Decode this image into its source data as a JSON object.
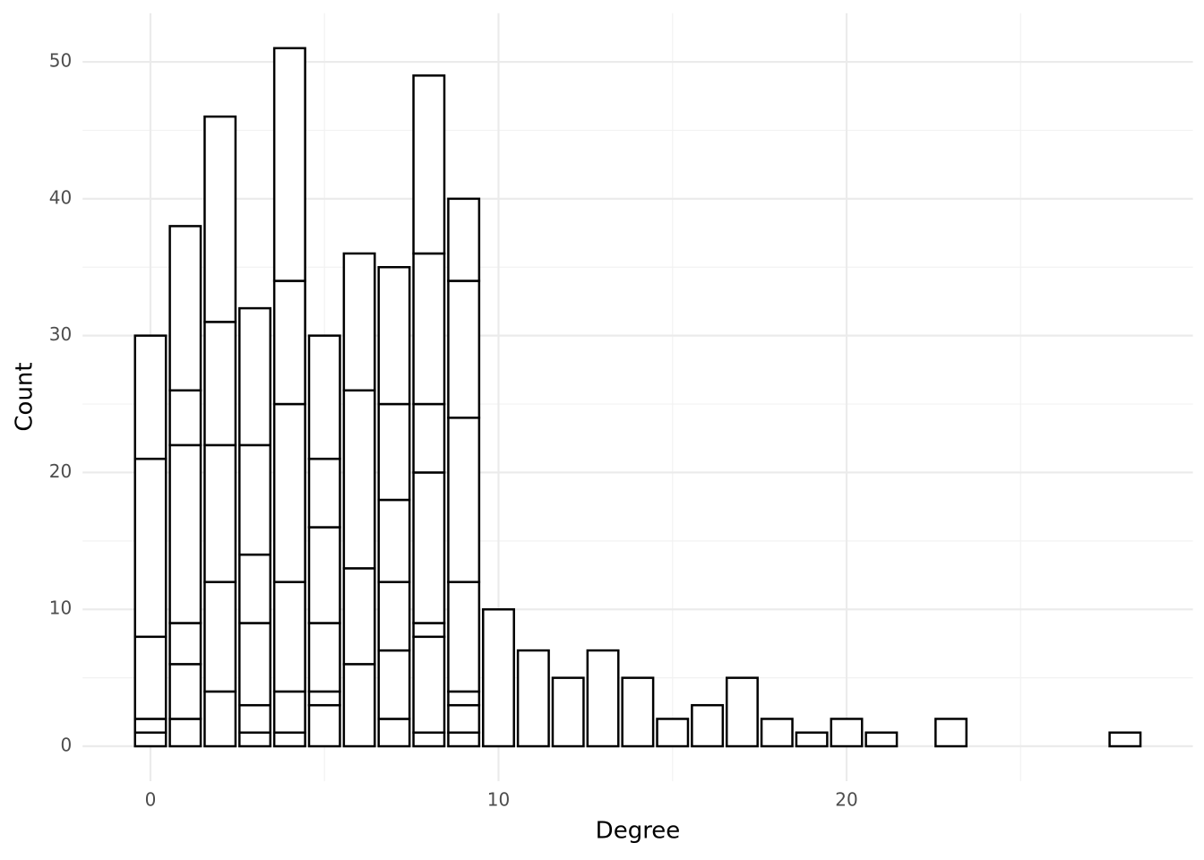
{
  "chart_data": {
    "type": "histogram",
    "x_label": "Degree",
    "y_label": "Count",
    "bins": [
      -0.5,
      0.5,
      1.5,
      2.5,
      3.5,
      4.5,
      5.5,
      6.5,
      7.5,
      8.5,
      9.5,
      10.5,
      11.5,
      12.5,
      13.5,
      14.5,
      15.5,
      16.5,
      17.5,
      18.5,
      19.5,
      20.5,
      21.5,
      22.5,
      23.5,
      24.5,
      25.5,
      26.5,
      27.5,
      28.5
    ],
    "values": [
      [
        1,
        1,
        6,
        13,
        9
      ],
      [
        2,
        4,
        3,
        13,
        4,
        12
      ],
      [
        4,
        8,
        10,
        9,
        15
      ],
      [
        1,
        2,
        6,
        5,
        8,
        10
      ],
      [
        1,
        3,
        8,
        13,
        9,
        17
      ],
      [
        3,
        1,
        5,
        7,
        5,
        9
      ],
      [
        6,
        7,
        13,
        10
      ],
      [
        2,
        5,
        5,
        6,
        7,
        10
      ],
      [
        1,
        7,
        1,
        11,
        5,
        11,
        13
      ],
      [
        1,
        2,
        1,
        8,
        12,
        10,
        6
      ],
      [
        10
      ],
      [
        7
      ],
      [
        5
      ],
      [
        7
      ],
      [
        5
      ],
      [
        2
      ],
      [
        3
      ],
      [
        5
      ],
      [
        2
      ],
      [
        1
      ],
      [
        2
      ],
      [
        1
      ],
      [],
      [
        2
      ],
      [],
      [],
      [],
      [],
      [
        1
      ]
    ],
    "fill": "#ffffff",
    "edge_color": "#000000",
    "xlim": [
      -1.95,
      29.95
    ],
    "ylim": [
      -2.55,
      53.55
    ],
    "xticks": [
      0,
      10,
      20
    ],
    "yticks": [
      0,
      10,
      20,
      30,
      40,
      50
    ],
    "xminor": [
      5,
      15,
      25
    ],
    "yminor": [
      5,
      15,
      25,
      35,
      45
    ],
    "grid": true
  }
}
